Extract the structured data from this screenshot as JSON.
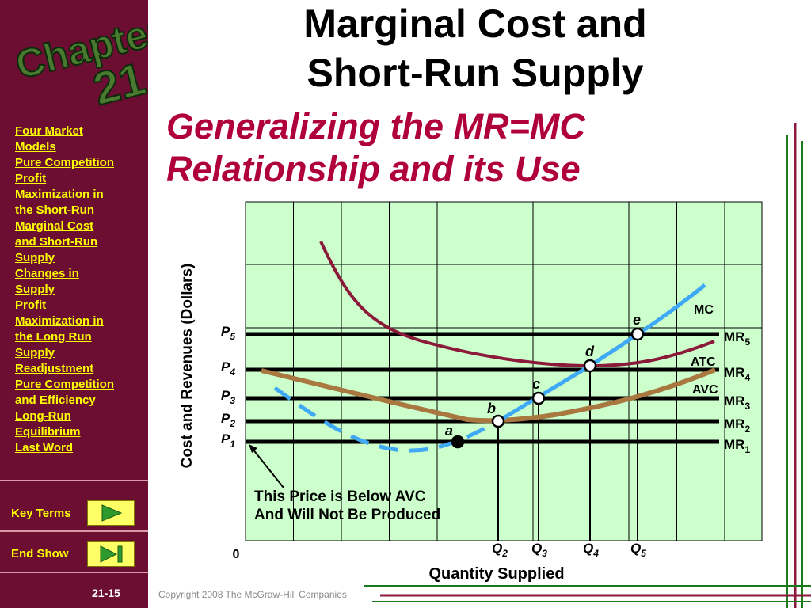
{
  "chapter_label": "Chapter",
  "chapter_number": "21",
  "title_line1": "Marginal Cost and",
  "title_line2": "Short-Run Supply",
  "subtitle_line1": "Generalizing the MR=MC",
  "subtitle_line2": "Relationship and its Use",
  "nav_items": [
    "Four Market Models",
    "Pure Competition",
    "Profit Maximization in the Short-Run",
    "Marginal Cost and Short-Run Supply",
    "Changes in Supply",
    "Profit Maximization in the Long Run",
    "Supply",
    "Readjustment",
    "Pure Competition and Efficiency",
    "Long-Run Equilibrium",
    "Last Word"
  ],
  "nav_display": [
    "Four Market\nModels",
    "Pure Competition",
    "Profit\nMaximization in\nthe Short-Run",
    "Marginal Cost\nand Short-Run\nSupply",
    "Changes in\nSupply",
    "Profit\nMaximization in\nthe Long Run",
    "Supply",
    "Readjustment",
    "Pure Competition\nand Efficiency",
    "Long-Run\nEquilibrium",
    "Last Word"
  ],
  "key_terms_label": "Key Terms",
  "end_show_label": "End Show",
  "slide_number": "21-15",
  "copyright": "Copyright 2008 The McGraw-Hill Companies",
  "colors": {
    "sidebar": "#6b0e32",
    "nav_text": "#ffff00",
    "subtitle": "#b0003a",
    "plot_bg": "#ccffcc",
    "atc": "#8b1a3a",
    "avc": "#a87840",
    "mc": "#3fa9f5",
    "mr": "#000000"
  },
  "icons": {
    "key_terms": "play-triangle-icon",
    "end_show": "end-show-icon"
  },
  "chart_data": {
    "type": "line",
    "ylabel": "Cost and Revenues (Dollars)",
    "xlabel": "Quantity Supplied",
    "origin_label": "0",
    "grid": true,
    "price_levels": [
      {
        "label": "P",
        "sub": "1",
        "mr_label": "MR",
        "mr_sub": "1",
        "value": 1
      },
      {
        "label": "P",
        "sub": "2",
        "mr_label": "MR",
        "mr_sub": "2",
        "value": 2
      },
      {
        "label": "P",
        "sub": "3",
        "mr_label": "MR",
        "mr_sub": "3",
        "value": 3
      },
      {
        "label": "P",
        "sub": "4",
        "mr_label": "MR",
        "mr_sub": "4",
        "value": 4
      },
      {
        "label": "P",
        "sub": "5",
        "mr_label": "MR",
        "mr_sub": "5",
        "value": 5
      }
    ],
    "quantities": [
      {
        "label": "Q",
        "sub": "2",
        "value": 5.3
      },
      {
        "label": "Q",
        "sub": "3",
        "value": 6.1
      },
      {
        "label": "Q",
        "sub": "4",
        "value": 7.2
      },
      {
        "label": "Q",
        "sub": "5",
        "value": 8.1
      }
    ],
    "series": [
      {
        "name": "MC",
        "style": "solid-below-avc-dashed",
        "points": [
          [
            0.6,
            2.5
          ],
          [
            1.8,
            1.2
          ],
          [
            3.5,
            0.8
          ],
          [
            4.5,
            1.0
          ],
          [
            5.3,
            2.0
          ],
          [
            6.1,
            3.0
          ],
          [
            7.2,
            4.0
          ],
          [
            8.1,
            5.0
          ],
          [
            9.0,
            6.1
          ]
        ]
      },
      {
        "name": "ATC",
        "points": [
          [
            1.6,
            6.5
          ],
          [
            2.8,
            5.0
          ],
          [
            4.0,
            4.4
          ],
          [
            5.5,
            4.1
          ],
          [
            6.9,
            4.0
          ],
          [
            8.0,
            4.1
          ],
          [
            9.5,
            4.6
          ]
        ]
      },
      {
        "name": "AVC",
        "points": [
          [
            1.2,
            3.9
          ],
          [
            2.5,
            3.4
          ],
          [
            4.0,
            2.5
          ],
          [
            5.3,
            2.0
          ],
          [
            6.5,
            2.2
          ],
          [
            8.0,
            2.9
          ],
          [
            9.5,
            3.8
          ]
        ]
      }
    ],
    "points": [
      {
        "label": "a",
        "x": 4.5,
        "y": 1,
        "filled": true
      },
      {
        "label": "b",
        "x": 5.3,
        "y": 2,
        "filled": false
      },
      {
        "label": "c",
        "x": 6.1,
        "y": 3,
        "filled": false
      },
      {
        "label": "d",
        "x": 7.2,
        "y": 4,
        "filled": false
      },
      {
        "label": "e",
        "x": 8.1,
        "y": 5,
        "filled": false
      }
    ],
    "annotation_line1": "This Price is Below AVC",
    "annotation_line2": "And Will Not Be Produced"
  }
}
